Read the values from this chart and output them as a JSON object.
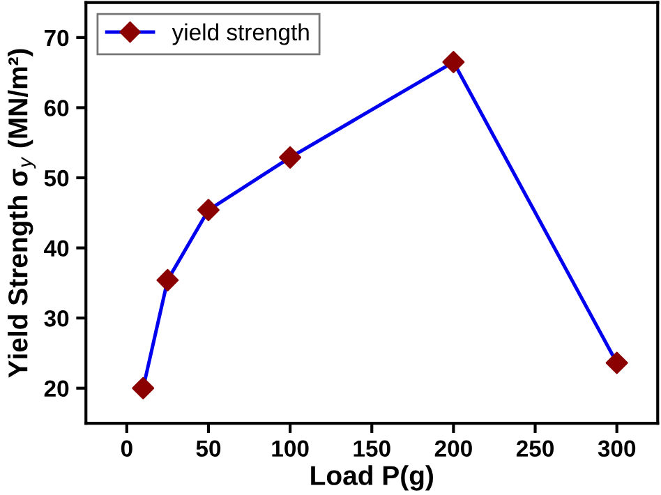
{
  "chart_data": {
    "type": "line",
    "xlabel": "Load P(g)",
    "ylabel": "Yield Strength σ$_{y}$ (MN/m²)",
    "x": [
      10,
      25,
      50,
      100,
      200,
      300
    ],
    "series": [
      {
        "name": "yield strength",
        "color": "#0000ee",
        "colors": [
          "#8b0000",
          "#8b0000",
          "#8b0000",
          "#8b0000",
          "#8b0000",
          "#8b0000"
        ],
        "values": [
          20,
          35.4,
          45.4,
          52.9,
          66.5,
          23.6
        ]
      }
    ],
    "xlim": [
      -25,
      325
    ],
    "xticks": [
      0,
      50,
      100,
      150,
      200,
      250,
      300
    ],
    "ylim": [
      15,
      75
    ],
    "yticks": [
      20,
      30,
      40,
      50,
      60,
      70
    ],
    "marker": "diamond",
    "line_style": "solid",
    "grid": false,
    "legend": "top left"
  }
}
